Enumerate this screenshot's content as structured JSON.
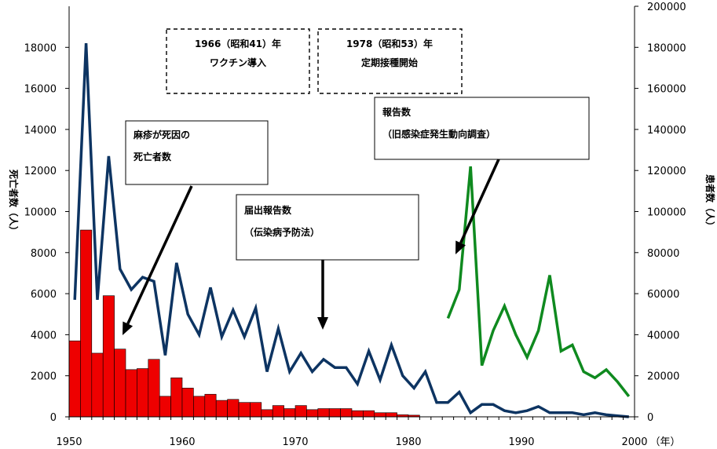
{
  "chart_data": {
    "type": "bar+line",
    "x_ticks": [
      "1950",
      "1960",
      "1970",
      "1980",
      "1990",
      "2000"
    ],
    "x_unit": "（年）",
    "xlim": [
      1950,
      2000
    ],
    "y_left": {
      "label": "死亡者数（人）",
      "ticks": [
        "0",
        "2000",
        "4000",
        "6000",
        "8000",
        "10000",
        "12000",
        "14000",
        "16000",
        "18000"
      ],
      "lim": [
        0,
        20000
      ]
    },
    "y_right": {
      "label": "患者数（人）",
      "ticks": [
        "0",
        "20000",
        "40000",
        "60000",
        "80000",
        "100000",
        "120000",
        "140000",
        "160000",
        "180000",
        "200000"
      ],
      "lim": [
        0,
        200000
      ]
    },
    "deaths": {
      "axis": "left",
      "color": "#ee0000",
      "x": [
        1950,
        1951,
        1952,
        1953,
        1954,
        1955,
        1956,
        1957,
        1958,
        1959,
        1960,
        1961,
        1962,
        1963,
        1964,
        1965,
        1966,
        1967,
        1968,
        1969,
        1970,
        1971,
        1972,
        1973,
        1974,
        1975,
        1976,
        1977,
        1978,
        1979,
        1980
      ],
      "values": [
        3700,
        9100,
        3100,
        5900,
        3300,
        2300,
        2350,
        2800,
        1000,
        1900,
        1400,
        1000,
        1100,
        800,
        850,
        700,
        700,
        350,
        550,
        400,
        550,
        350,
        400,
        400,
        400,
        300,
        300,
        200,
        200,
        100,
        80
      ]
    },
    "notified": {
      "axis": "right",
      "color": "#0d3462",
      "x": [
        1950,
        1951,
        1952,
        1953,
        1954,
        1955,
        1956,
        1957,
        1958,
        1959,
        1960,
        1961,
        1962,
        1963,
        1964,
        1965,
        1966,
        1967,
        1968,
        1969,
        1970,
        1971,
        1972,
        1973,
        1974,
        1975,
        1976,
        1977,
        1978,
        1979,
        1980,
        1981,
        1982,
        1983,
        1984,
        1985,
        1986,
        1987,
        1988,
        1989,
        1990,
        1991,
        1992,
        1993,
        1994,
        1995,
        1996,
        1997,
        1998,
        1999
      ],
      "values": [
        57000,
        182000,
        57000,
        127000,
        72000,
        62000,
        68000,
        66000,
        30000,
        75000,
        50000,
        40000,
        63000,
        39000,
        52000,
        39000,
        53000,
        22000,
        43000,
        22000,
        31000,
        22000,
        28000,
        24000,
        24000,
        16000,
        32000,
        18000,
        35000,
        20000,
        14000,
        22000,
        7000,
        7000,
        12000,
        2000,
        6000,
        6000,
        3000,
        2000,
        3000,
        5000,
        2000,
        2000,
        2000,
        1000,
        2000,
        1000,
        500,
        0
      ]
    },
    "surveillance": {
      "axis": "right",
      "color": "#0f8a1f",
      "x": [
        1983,
        1984,
        1985,
        1986,
        1987,
        1988,
        1989,
        1990,
        1991,
        1992,
        1993,
        1994,
        1995,
        1996,
        1997,
        1998,
        1999
      ],
      "values": [
        48000,
        62000,
        122000,
        25000,
        42000,
        54000,
        40000,
        29000,
        42000,
        69000,
        32000,
        35000,
        22000,
        19000,
        23000,
        17000,
        10000
      ]
    },
    "series_labels": {
      "deaths": [
        "麻疹が死因の",
        "死亡者数"
      ],
      "notified": [
        "届出報告数",
        "（伝染病予防法）"
      ],
      "surveillance": [
        "報告数",
        "（旧感染症発生動向調査）"
      ]
    },
    "events": [
      [
        "1966（昭和41）年",
        "ワクチン導入"
      ],
      [
        "1978（昭和53）年",
        "定期接種開始"
      ]
    ]
  }
}
